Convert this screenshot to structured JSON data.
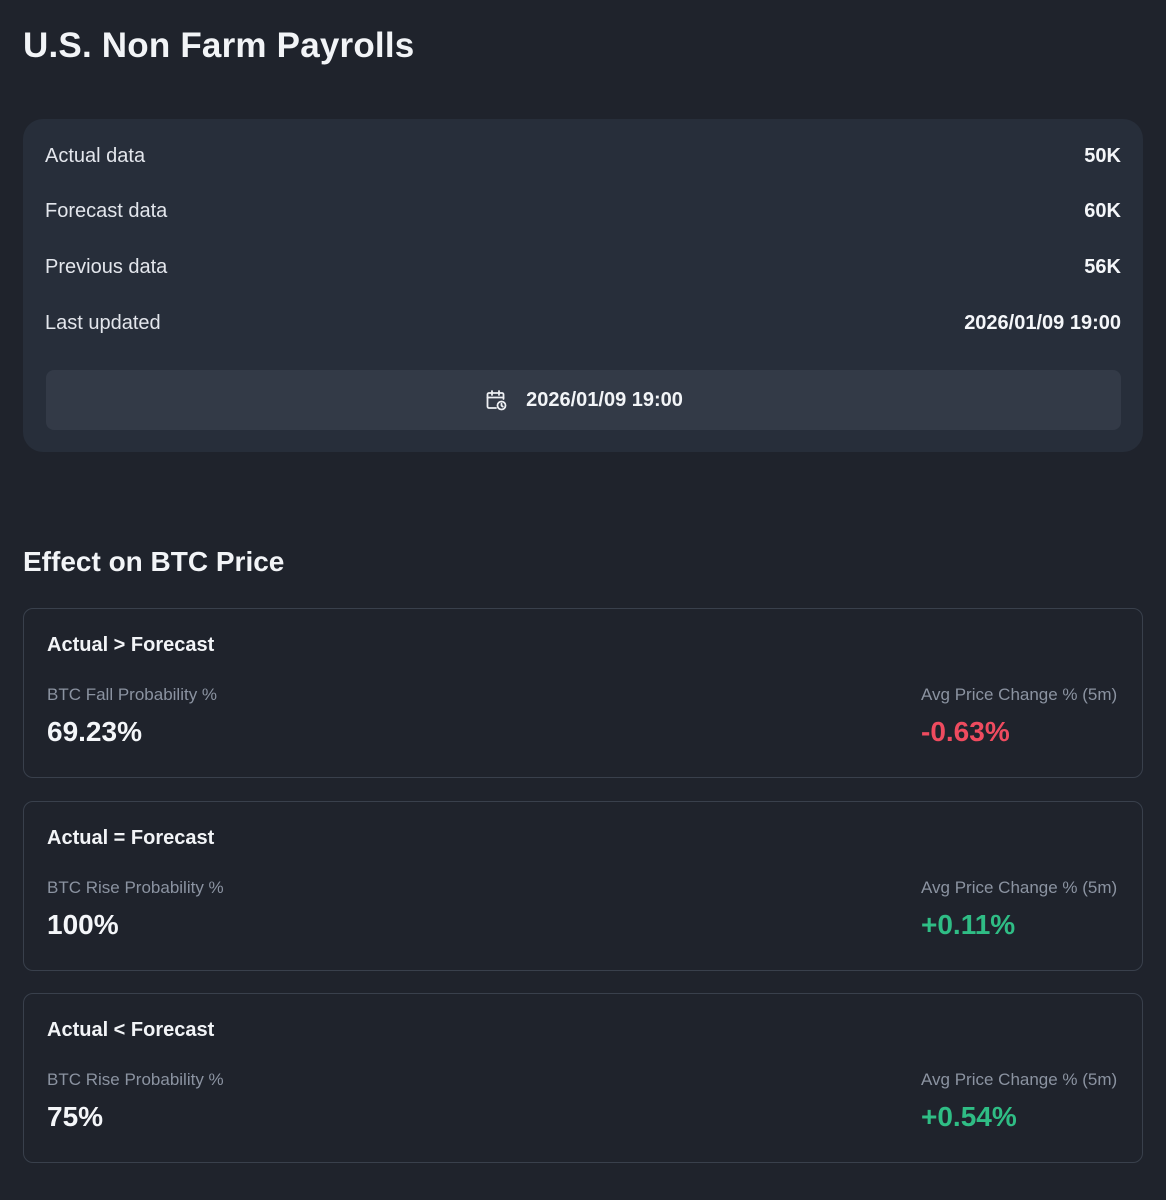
{
  "page_title": "U.S. Non Farm Payrolls",
  "data_card": {
    "rows": [
      {
        "label": "Actual data",
        "value": "50K"
      },
      {
        "label": "Forecast data",
        "value": "60K"
      },
      {
        "label": "Previous data",
        "value": "56K"
      },
      {
        "label": "Last updated",
        "value": "2026/01/09 19:00"
      }
    ],
    "date_button": {
      "icon": "calendar-clock-icon",
      "label": "2026/01/09 19:00"
    }
  },
  "effect_section": {
    "title": "Effect on BTC Price",
    "cards": [
      {
        "condition": "Actual > Forecast",
        "probability_label": "BTC Fall Probability %",
        "probability_value": "69.23%",
        "change_label": "Avg Price Change % (5m)",
        "change_value": "-0.63%",
        "change_direction": "negative"
      },
      {
        "condition": "Actual = Forecast",
        "probability_label": "BTC Rise Probability %",
        "probability_value": "100%",
        "change_label": "Avg Price Change % (5m)",
        "change_value": "+0.11%",
        "change_direction": "positive"
      },
      {
        "condition": "Actual < Forecast",
        "probability_label": "BTC Rise Probability %",
        "probability_value": "75%",
        "change_label": "Avg Price Change % (5m)",
        "change_value": "+0.54%",
        "change_direction": "positive"
      }
    ]
  },
  "colors": {
    "background": "#1f232c",
    "card": "#272e3a",
    "button": "#333a47",
    "negative": "#ef4b5f",
    "positive": "#2fbd85",
    "muted_text": "#8b93a1"
  }
}
